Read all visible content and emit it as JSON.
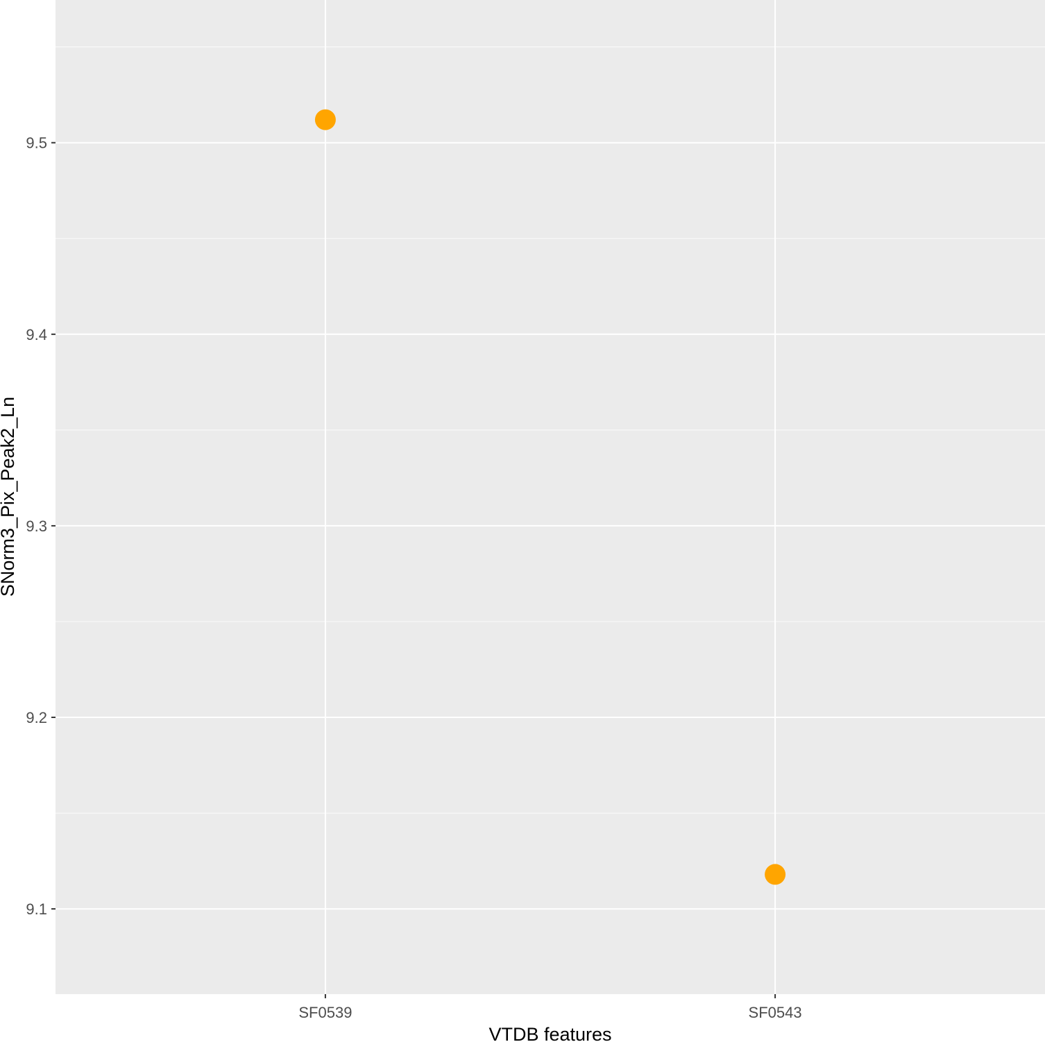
{
  "chart_data": {
    "type": "scatter",
    "title": "",
    "xlabel": "VTDB features",
    "ylabel": "SNorm3_Pix_Peak2_Ln",
    "categories": [
      "SF0539",
      "SF0543"
    ],
    "values": [
      9.512,
      9.118
    ],
    "ylim": [
      9.0555,
      9.5745
    ],
    "yticks": [
      9.1,
      9.2,
      9.3,
      9.4,
      9.5
    ],
    "ytick_labels": [
      "9.1",
      "9.2",
      "9.3",
      "9.4",
      "9.5"
    ],
    "grid": true,
    "legend": "none",
    "colors": {
      "point": "#FFA500",
      "panel_background": "#EBEBEB",
      "grid": "#FFFFFF",
      "tick_text": "#4D4D4D",
      "axis_title": "#000000"
    }
  }
}
